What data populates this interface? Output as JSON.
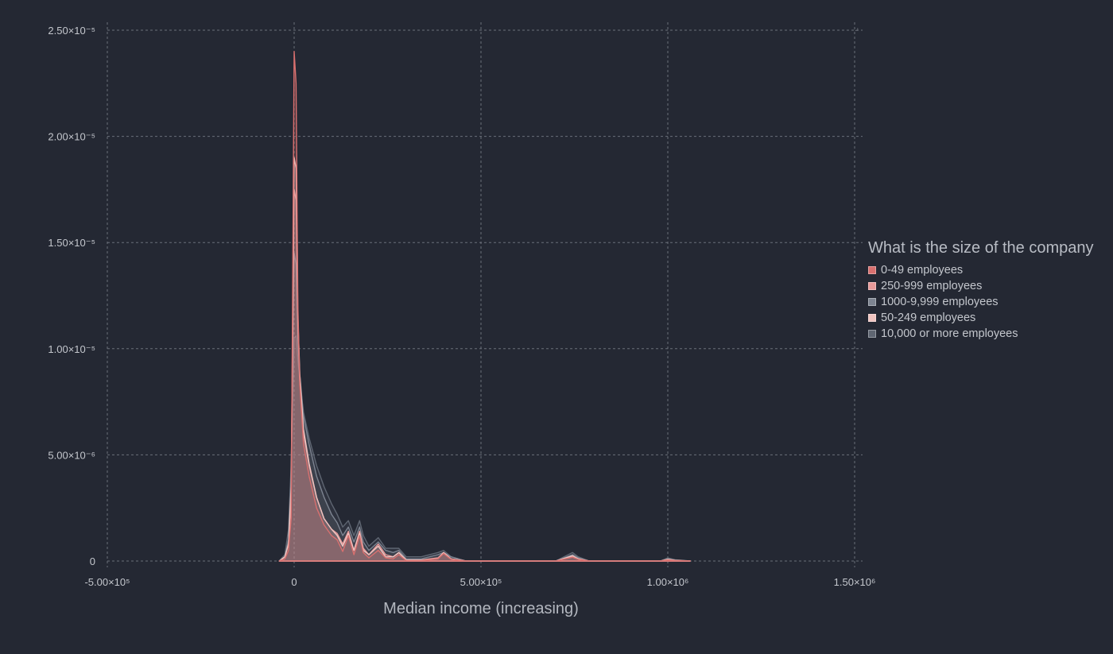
{
  "chart_data": {
    "type": "area",
    "title": "",
    "xlabel": "Median income (increasing)",
    "ylabel": "",
    "xlim": [
      -500000,
      1500000
    ],
    "ylim": [
      0,
      2.5e-05
    ],
    "x_ticks": [
      -500000,
      0,
      500000,
      1000000,
      1500000
    ],
    "x_tick_labels": [
      "-5.00×10⁵",
      "0",
      "5.00×10⁵",
      "1.00×10⁶",
      "1.50×10⁶"
    ],
    "y_ticks": [
      0,
      5e-06,
      1e-05,
      1.5e-05,
      2e-05,
      2.5e-05
    ],
    "y_tick_labels": [
      "0",
      "5.00×10⁻⁶",
      "1.00×10⁻⁵",
      "1.50×10⁻⁵",
      "2.00×10⁻⁵",
      "2.50×10⁻⁵"
    ],
    "grid": true,
    "legend_title": "What is the size of the company",
    "legend_position": "right",
    "series": [
      {
        "name": "0-49 employees",
        "color": "#d9706f",
        "x": [
          -40000,
          -25000,
          -15000,
          -8000,
          0,
          5000,
          10000,
          15000,
          25000,
          40000,
          60000,
          80000,
          100000,
          115000,
          130000,
          145000,
          160000,
          175000,
          185000,
          200000,
          225000,
          245000,
          265000,
          280000,
          300000,
          340000,
          385000,
          400000,
          420000,
          460000,
          700000,
          745000,
          760000,
          790000,
          980000,
          1000000,
          1020000,
          1060000
        ],
        "y": [
          0,
          1e-07,
          5e-07,
          2e-06,
          2.4e-05,
          2.25e-05,
          1.2e-05,
          8.3e-06,
          5.5e-06,
          4e-06,
          2.5e-06,
          1.7e-06,
          1.2e-06,
          1e-06,
          4.5e-07,
          1.2e-06,
          3e-07,
          1.2e-06,
          4e-07,
          1.5e-07,
          5e-07,
          1.5e-07,
          1e-07,
          3e-07,
          2e-08,
          2e-08,
          1e-07,
          3.5e-07,
          8e-08,
          0,
          0,
          1.8e-07,
          8e-08,
          0,
          0,
          5e-08,
          2e-08,
          0
        ]
      },
      {
        "name": "250-999 employees",
        "color": "#e89a9a",
        "x": [
          -40000,
          -25000,
          -15000,
          -8000,
          0,
          5000,
          10000,
          15000,
          25000,
          40000,
          60000,
          80000,
          100000,
          115000,
          130000,
          145000,
          160000,
          175000,
          185000,
          200000,
          225000,
          245000,
          265000,
          280000,
          300000,
          340000,
          385000,
          400000,
          420000,
          460000,
          700000,
          745000,
          760000,
          790000,
          980000,
          1000000,
          1020000,
          1060000
        ],
        "y": [
          0,
          2e-07,
          8e-07,
          3e-06,
          1.75e-05,
          1.7e-05,
          1.1e-05,
          8.5e-06,
          6e-06,
          4.5e-06,
          3e-06,
          2e-06,
          1.5e-06,
          1.3e-06,
          8e-07,
          1.4e-06,
          5e-07,
          1.4e-06,
          6e-07,
          3e-07,
          8e-07,
          3e-07,
          2e-07,
          4e-07,
          5e-08,
          5e-08,
          1.5e-07,
          4e-07,
          1e-07,
          0,
          0,
          2e-07,
          1e-07,
          0,
          0,
          8e-08,
          3e-08,
          0
        ]
      },
      {
        "name": "1000-9,999 employees",
        "color": "#7d8491",
        "x": [
          -40000,
          -25000,
          -15000,
          -8000,
          0,
          5000,
          10000,
          15000,
          25000,
          40000,
          60000,
          80000,
          100000,
          115000,
          130000,
          145000,
          160000,
          175000,
          185000,
          200000,
          225000,
          245000,
          265000,
          280000,
          300000,
          340000,
          385000,
          400000,
          420000,
          460000,
          700000,
          745000,
          760000,
          790000,
          980000,
          1000000,
          1020000,
          1060000
        ],
        "y": [
          0,
          2e-07,
          1e-06,
          4e-06,
          1.45e-05,
          1.4e-05,
          1.05e-05,
          8.8e-06,
          6.8e-06,
          5.5e-06,
          4e-06,
          3e-06,
          2.2e-06,
          1.8e-06,
          1.2e-06,
          1.6e-06,
          9e-07,
          1.6e-06,
          9e-07,
          5e-07,
          9e-07,
          5e-07,
          4e-07,
          5e-07,
          1e-07,
          1e-07,
          3e-07,
          4e-07,
          2e-07,
          0,
          0,
          3e-07,
          1.5e-07,
          0,
          0,
          1e-07,
          5e-08,
          0
        ]
      },
      {
        "name": "50-249 employees",
        "color": "#f0c4c0",
        "x": [
          -40000,
          -25000,
          -15000,
          -8000,
          0,
          5000,
          10000,
          15000,
          25000,
          40000,
          60000,
          80000,
          100000,
          115000,
          130000,
          145000,
          160000,
          175000,
          185000,
          200000,
          225000,
          245000,
          265000,
          280000,
          300000,
          340000,
          385000,
          400000,
          420000,
          460000,
          700000,
          745000,
          760000,
          790000,
          980000,
          1000000,
          1020000,
          1060000
        ],
        "y": [
          0,
          2e-07,
          8e-07,
          3.5e-06,
          1.9e-05,
          1.85e-05,
          1.15e-05,
          8.8e-06,
          6.2e-06,
          4.6e-06,
          3e-06,
          2e-06,
          1.5e-06,
          1.2e-06,
          7e-07,
          1.3e-06,
          5e-07,
          1.3e-06,
          5e-07,
          3e-07,
          7e-07,
          2e-07,
          2e-07,
          4e-07,
          5e-08,
          5e-08,
          1e-07,
          4e-07,
          1e-07,
          0,
          0,
          2.5e-07,
          1e-07,
          0,
          0,
          8e-08,
          3e-08,
          0
        ]
      },
      {
        "name": "10,000 or more employees",
        "color": "#5f6672",
        "x": [
          -40000,
          -25000,
          -15000,
          -8000,
          0,
          5000,
          10000,
          15000,
          25000,
          40000,
          60000,
          80000,
          100000,
          115000,
          130000,
          145000,
          160000,
          175000,
          185000,
          200000,
          225000,
          245000,
          265000,
          280000,
          300000,
          340000,
          385000,
          400000,
          420000,
          460000,
          700000,
          745000,
          760000,
          790000,
          980000,
          1000000,
          1020000,
          1060000
        ],
        "y": [
          0,
          3e-07,
          1.5e-06,
          4.5e-06,
          1.05e-05,
          1.06e-05,
          9.5e-06,
          8.5e-06,
          7e-06,
          5.8e-06,
          4.5e-06,
          3.5e-06,
          2.7e-06,
          2.2e-06,
          1.6e-06,
          1.9e-06,
          1.2e-06,
          1.9e-06,
          1.2e-06,
          7e-07,
          1.1e-06,
          6e-07,
          6e-07,
          6e-07,
          2e-07,
          2e-07,
          4e-07,
          5e-07,
          2e-07,
          0,
          0,
          4e-07,
          2e-07,
          0,
          0,
          1.5e-07,
          6e-08,
          0
        ]
      }
    ]
  }
}
